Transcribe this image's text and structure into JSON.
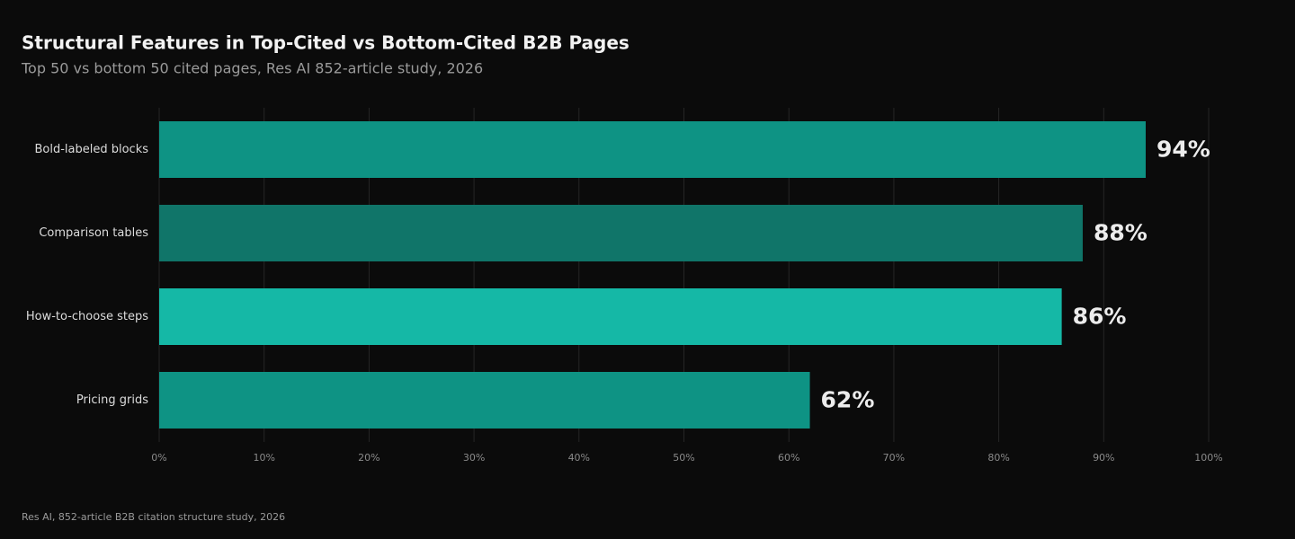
{
  "chart_data": {
    "type": "hbar",
    "title": "Structural Features in Top-Cited vs Bottom-Cited B2B Pages",
    "subtitle": "Top 50 vs bottom 50 cited pages, Res AI 852-article study, 2026",
    "source": "Res AI, 852-article B2B citation structure study, 2026",
    "categories": [
      "Bold-labeled blocks",
      "Comparison tables",
      "How-to-choose steps",
      "Pricing grids"
    ],
    "values": [
      94,
      88,
      86,
      62
    ],
    "value_labels": [
      "94%",
      "88%",
      "86%",
      "62%"
    ],
    "colors": [
      "#0e9384",
      "#107569",
      "#15b8a6",
      "#0e9384"
    ],
    "xlim": [
      0,
      100
    ],
    "xticks": [
      {
        "value": 0,
        "label": "0%"
      },
      {
        "value": 10,
        "label": "10%"
      },
      {
        "value": 20,
        "label": "20%"
      },
      {
        "value": 30,
        "label": "30%"
      },
      {
        "value": 40,
        "label": "40%"
      },
      {
        "value": 50,
        "label": "50%"
      },
      {
        "value": 60,
        "label": "60%"
      },
      {
        "value": 70,
        "label": "70%"
      },
      {
        "value": 80,
        "label": "80%"
      },
      {
        "value": 90,
        "label": "90%"
      },
      {
        "value": 100,
        "label": "100%"
      }
    ],
    "grid": true
  }
}
